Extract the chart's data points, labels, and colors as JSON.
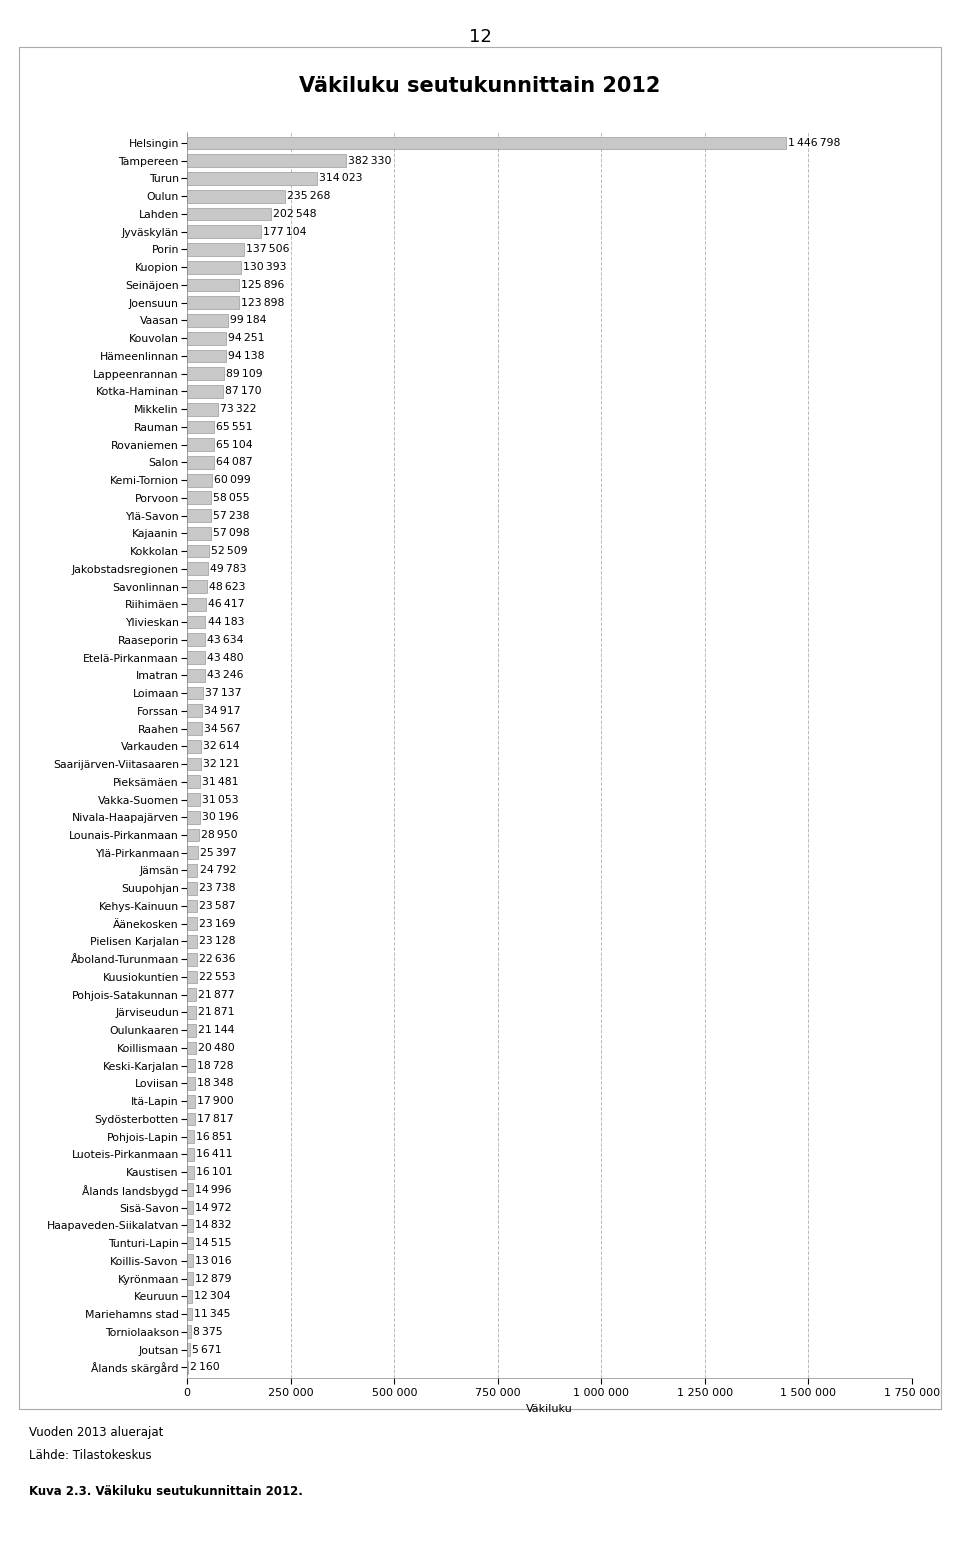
{
  "title": "Väkiluku seutukunnittain 2012",
  "page_number": "12",
  "xlabel": "Väkiluku",
  "footer_line1": "Vuoden 2013 aluerajat",
  "footer_line2": "Lähde: Tilastokeskus",
  "caption": "Kuva 2.3. Väkiluku seutukunnittain 2012.",
  "categories": [
    "Helsingin",
    "Tampereen",
    "Turun",
    "Oulun",
    "Lahden",
    "Jyväskylän",
    "Porin",
    "Kuopion",
    "Seinäjoen",
    "Joensuun",
    "Vaasan",
    "Kouvolan",
    "Hämeenlinnan",
    "Lappeenrannan",
    "Kotka-Haminan",
    "Mikkelin",
    "Rauman",
    "Rovaniemen",
    "Salon",
    "Kemi-Tornion",
    "Porvoon",
    "Ylä-Savon",
    "Kajaanin",
    "Kokkolan",
    "Jakobstadsregionen",
    "Savonlinnan",
    "Riihimäen",
    "Ylivieskan",
    "Raaseporin",
    "Etelä-Pirkanmaan",
    "Imatran",
    "Loimaan",
    "Forssan",
    "Raahen",
    "Varkauden",
    "Saarijärven-Viitasaaren",
    "Pieksämäen",
    "Vakka-Suomen",
    "Nivala-Haapajärven",
    "Lounais-Pirkanmaan",
    "Ylä-Pirkanmaan",
    "Jämsän",
    "Suupohjan",
    "Kehys-Kainuun",
    "Äänekosken",
    "Pielisen Karjalan",
    "Åboland-Turunmaan",
    "Kuusiokuntien",
    "Pohjois-Satakunnan",
    "Järviseudun",
    "Oulunkaaren",
    "Koillismaan",
    "Keski-Karjalan",
    "Loviisan",
    "Itä-Lapin",
    "Sydösterbotten",
    "Pohjois-Lapin",
    "Luoteis-Pirkanmaan",
    "Kaustisen",
    "Ålands landsbygd",
    "Sisä-Savon",
    "Haapaveden-Siikalatvan",
    "Tunturi-Lapin",
    "Koillis-Savon",
    "Kyrönmaan",
    "Keuruun",
    "Mariehamns stad",
    "Torniolaakson",
    "Joutsan",
    "Ålands skärgård"
  ],
  "values": [
    1446798,
    382330,
    314023,
    235268,
    202548,
    177104,
    137506,
    130393,
    125896,
    123898,
    99184,
    94251,
    94138,
    89109,
    87170,
    73322,
    65551,
    65104,
    64087,
    60099,
    58055,
    57238,
    57098,
    52509,
    49783,
    48623,
    46417,
    44183,
    43634,
    43480,
    43246,
    37137,
    34917,
    34567,
    32614,
    32121,
    31481,
    31053,
    30196,
    28950,
    25397,
    24792,
    23738,
    23587,
    23169,
    23128,
    22636,
    22553,
    21877,
    21871,
    21144,
    20480,
    18728,
    18348,
    17900,
    17817,
    16851,
    16411,
    16101,
    14996,
    14972,
    14832,
    14515,
    13016,
    12879,
    12304,
    11345,
    8375,
    5671,
    2160
  ],
  "bar_color": "#c8c8c8",
  "bar_edge_color": "#888888",
  "grid_color": "#bbbbbb",
  "xlim": [
    0,
    1750000
  ],
  "xticks": [
    0,
    250000,
    500000,
    750000,
    1000000,
    1250000,
    1500000,
    1750000
  ],
  "xtick_labels": [
    "0",
    "250 000",
    "500 000",
    "750 000",
    "1 000 000",
    "1 250 000",
    "1 500 000",
    "1 750 000"
  ],
  "background_color": "#ffffff",
  "panel_color": "#ffffff",
  "panel_edge_color": "#aaaaaa",
  "title_fontsize": 15,
  "label_fontsize": 7.8,
  "value_fontsize": 7.8,
  "axis_fontsize": 8.0,
  "page_fontsize": 13,
  "footer_fontsize": 8.5,
  "caption_fontsize": 8.5
}
